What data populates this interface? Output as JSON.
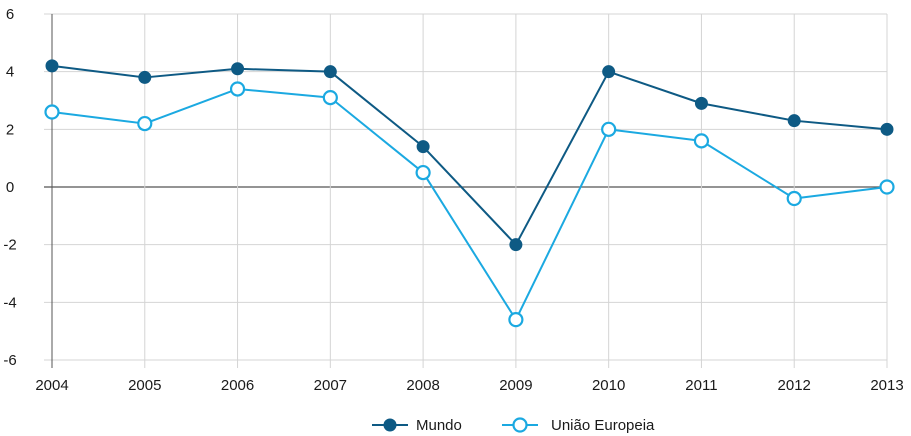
{
  "chart_data": {
    "type": "line",
    "x": [
      "2004",
      "2005",
      "2006",
      "2007",
      "2008",
      "2009",
      "2010",
      "2011",
      "2012",
      "2013"
    ],
    "series": [
      {
        "name": "Mundo",
        "color": "#0e5a84",
        "marker": "filled-circle",
        "values": [
          4.2,
          3.8,
          4.1,
          4.0,
          1.4,
          -2.0,
          4.0,
          2.9,
          2.3,
          2.0
        ]
      },
      {
        "name": "União Europeia",
        "color": "#1ba9e1",
        "marker": "open-circle",
        "values": [
          2.6,
          2.2,
          3.4,
          3.1,
          0.5,
          -4.6,
          2.0,
          1.6,
          -0.4,
          0.0
        ]
      }
    ],
    "y_ticks": [
      "6",
      "4",
      "2",
      "0",
      "-2",
      "-4",
      "-6"
    ],
    "ylim": [
      -6,
      6
    ],
    "grid": true,
    "legend_position": "bottom-center",
    "title": "",
    "xlabel": "",
    "ylabel": ""
  }
}
